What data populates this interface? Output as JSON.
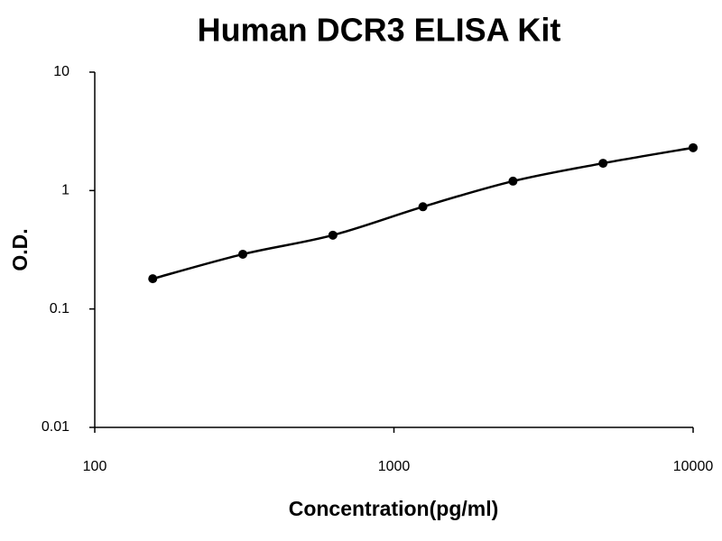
{
  "chart_data": {
    "type": "line",
    "title": "Human DCR3 ELISA Kit",
    "x_label": "Concentration(pg/ml)",
    "y_label": "O.D.",
    "x": [
      156.25,
      312.5,
      625,
      1250,
      2500,
      5000,
      10000
    ],
    "values": [
      0.18,
      0.29,
      0.42,
      0.73,
      1.2,
      1.7,
      2.3
    ],
    "color": "#000000",
    "log_x": true,
    "log_y": true,
    "xlim": [
      100,
      10000
    ],
    "xticks": [
      100,
      1000,
      10000
    ],
    "ylim": [
      0.01,
      10
    ],
    "yticks": [
      0.01,
      0.1,
      1,
      10
    ],
    "grid": false,
    "markers": true,
    "smooth": true
  }
}
